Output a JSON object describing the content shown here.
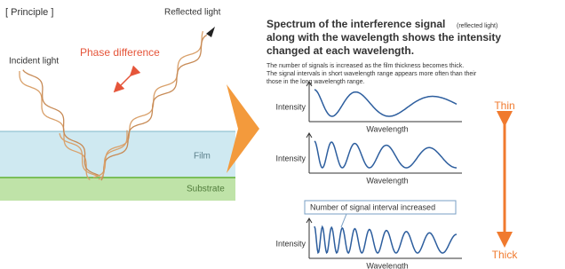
{
  "principle": {
    "title": "[ Principle ]",
    "reflected": "Reflected light",
    "incident": "Incident light",
    "phase": "Phase difference",
    "film": "Film",
    "substrate": "Substrate"
  },
  "explanation": {
    "heading": [
      "Spectrum of the interference signal",
      "along with the wavelength shows the intensity",
      "changed at each wavelength."
    ],
    "heading_note": "(reflected light)",
    "note": [
      "The number of signals is increased as the film thickness becomes thick.",
      "The signal intervals in short wavelength range appears more often than their",
      "those in the long wavelength range."
    ]
  },
  "graphs": [
    {
      "y_label": "Intensity",
      "x_label": "Wavelength"
    },
    {
      "y_label": "Intensity",
      "x_label": "Wavelength"
    },
    {
      "y_label": "Intensity",
      "x_label": "Wavelength"
    }
  ],
  "callout": "Number of signal interval increased",
  "scale": {
    "thin": "Thin",
    "thick": "Thick"
  }
}
